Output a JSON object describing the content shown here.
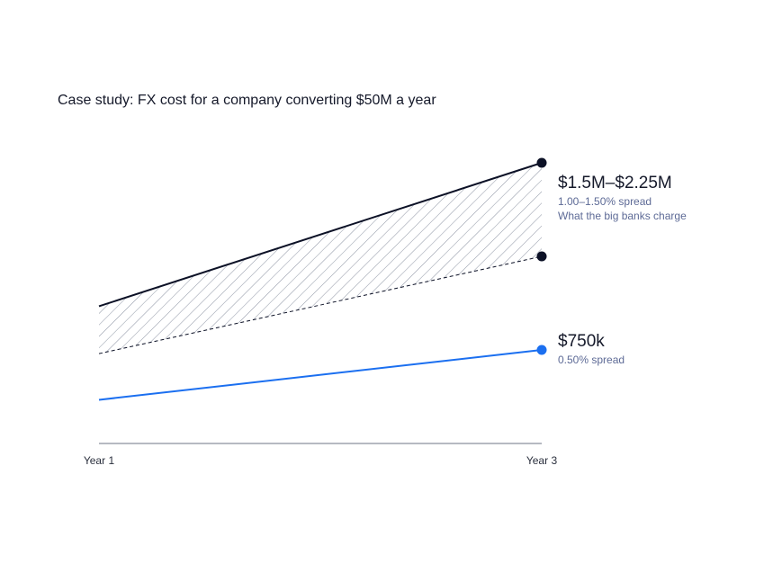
{
  "title": "Case study: FX cost for a company converting $50M a year",
  "colors": {
    "banks": "#0c1126",
    "blue": "#1b6ff0",
    "hatch": "#8d94a3",
    "axis": "#6e7486"
  },
  "chart_data": {
    "type": "line",
    "x": [
      "Year 1",
      "Year 3"
    ],
    "series": [
      {
        "values": [
          1.1,
          2.25
        ],
        "style": "solid",
        "color": "#0c1126"
      },
      {
        "values": [
          0.72,
          1.5
        ],
        "style": "dashed",
        "color": "#0c1126"
      },
      {
        "values": [
          0.35,
          0.75
        ],
        "style": "solid",
        "color": "#1b6ff0"
      }
    ],
    "shaded_band": "between upper and lower bank-rate lines (hatched)",
    "ylim": [
      0,
      2.25
    ],
    "grid": false,
    "annotations": [
      {
        "label": "$1.5M–$2.25M",
        "lines": [
          "1.00–1.50% spread",
          "What the big banks charge"
        ]
      },
      {
        "label": "$750k",
        "lines": [
          "0.50% spread"
        ]
      }
    ]
  }
}
